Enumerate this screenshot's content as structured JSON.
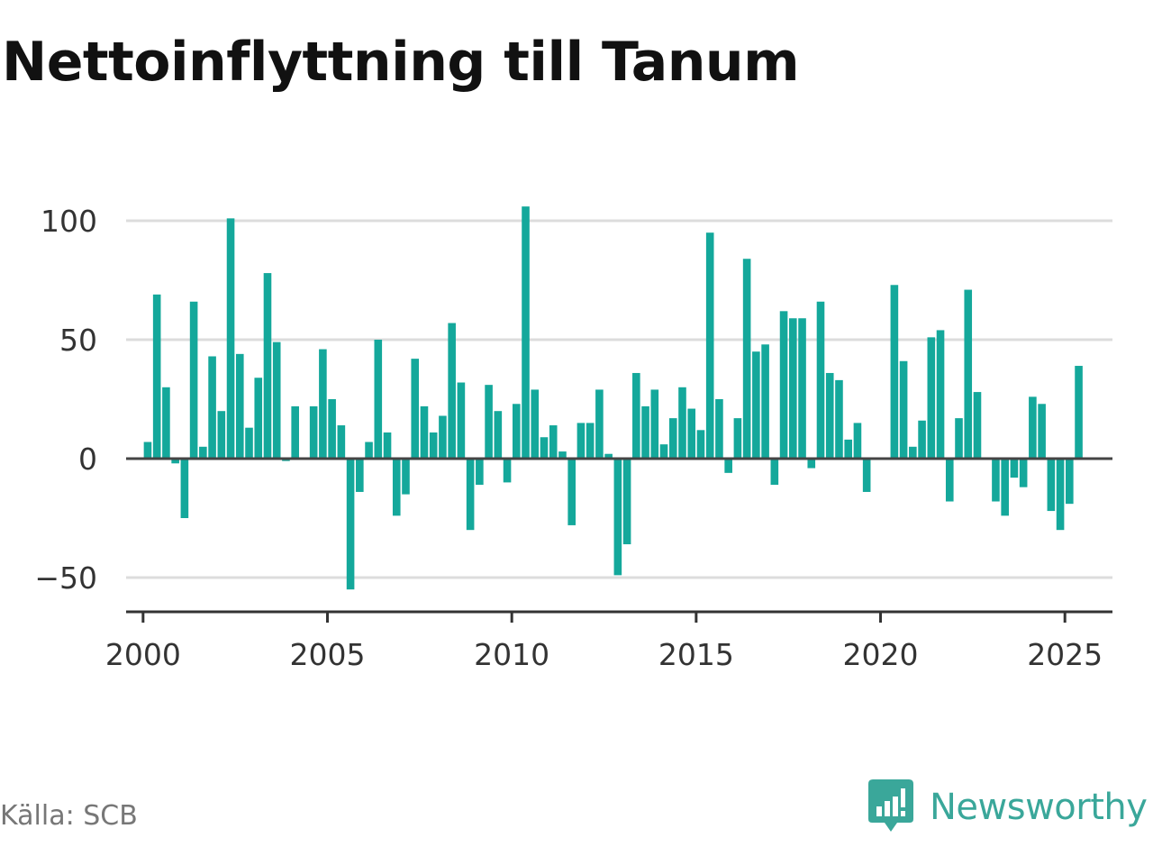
{
  "title": "Nettoinflyttning till Tanum",
  "source": "Källa: SCB",
  "brand": {
    "name": "Newsworthy",
    "logo_icon": "newsworthy-bar-chart-bubble-icon",
    "color": "#3aa79a"
  },
  "chart_data": {
    "type": "bar",
    "title": "Nettoinflyttning till Tanum",
    "xlabel": "",
    "ylabel": "",
    "bar_color": "#14a89b",
    "grid": true,
    "ylim": [
      -65,
      105
    ],
    "yticks": [
      100,
      50,
      0,
      -50
    ],
    "ytick_labels": [
      "100",
      "50",
      "0",
      "−50"
    ],
    "xlim": [
      1999.54,
      2026.29
    ],
    "xticks": [
      2000,
      2005,
      2010,
      2015,
      2020,
      2025
    ],
    "xtick_labels": [
      "2000",
      "2005",
      "2010",
      "2015",
      "2020",
      "2025"
    ],
    "start": "2000 Q1",
    "frequency": "quarterly",
    "values": [
      7,
      69,
      30,
      -2,
      -25,
      66,
      5,
      43,
      20,
      101,
      44,
      13,
      34,
      78,
      49,
      -1,
      22,
      0,
      22,
      46,
      25,
      14,
      -55,
      -14,
      7,
      50,
      11,
      -24,
      -15,
      42,
      22,
      11,
      18,
      57,
      32,
      -30,
      -11,
      31,
      20,
      -10,
      23,
      106,
      29,
      9,
      14,
      3,
      -28,
      15,
      15,
      29,
      2,
      -49,
      -36,
      36,
      22,
      29,
      6,
      17,
      30,
      21,
      12,
      95,
      25,
      -6,
      17,
      84,
      45,
      48,
      -11,
      62,
      59,
      59,
      -4,
      66,
      36,
      33,
      8,
      15,
      -14,
      0,
      0,
      73,
      41,
      5,
      16,
      51,
      54,
      -18,
      17,
      71,
      28,
      0,
      -18,
      -24,
      -8,
      -12,
      26,
      23,
      -22,
      -30,
      -19,
      39
    ]
  }
}
